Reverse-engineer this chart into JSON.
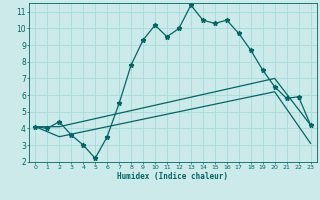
{
  "title": "",
  "xlabel": "Humidex (Indice chaleur)",
  "bg_color": "#cceaea",
  "grid_color": "#aadddd",
  "line_color": "#006666",
  "xlim": [
    -0.5,
    23.5
  ],
  "ylim": [
    2,
    11.5
  ],
  "xticks": [
    0,
    1,
    2,
    3,
    4,
    5,
    6,
    7,
    8,
    9,
    10,
    11,
    12,
    13,
    14,
    15,
    16,
    17,
    18,
    19,
    20,
    21,
    22,
    23
  ],
  "yticks": [
    2,
    3,
    4,
    5,
    6,
    7,
    8,
    9,
    10,
    11
  ],
  "curve1_x": [
    0,
    1,
    2,
    3,
    4,
    5,
    6,
    7,
    8,
    9,
    10,
    11,
    12,
    13,
    14,
    15,
    16,
    17,
    18,
    19,
    20,
    21,
    22,
    23
  ],
  "curve1_y": [
    4.1,
    4.0,
    4.4,
    3.6,
    3.0,
    2.2,
    3.5,
    5.5,
    7.8,
    9.3,
    10.2,
    9.5,
    10.0,
    11.4,
    10.5,
    10.3,
    10.5,
    9.7,
    8.7,
    7.5,
    6.5,
    5.8,
    5.9,
    4.2
  ],
  "curve2_x": [
    0,
    2,
    20,
    23
  ],
  "curve2_y": [
    4.1,
    4.1,
    7.0,
    4.2
  ],
  "curve3_x": [
    0,
    2,
    20,
    23
  ],
  "curve3_y": [
    4.1,
    3.5,
    6.2,
    3.1
  ],
  "marker": "*",
  "markersize": 3.5
}
